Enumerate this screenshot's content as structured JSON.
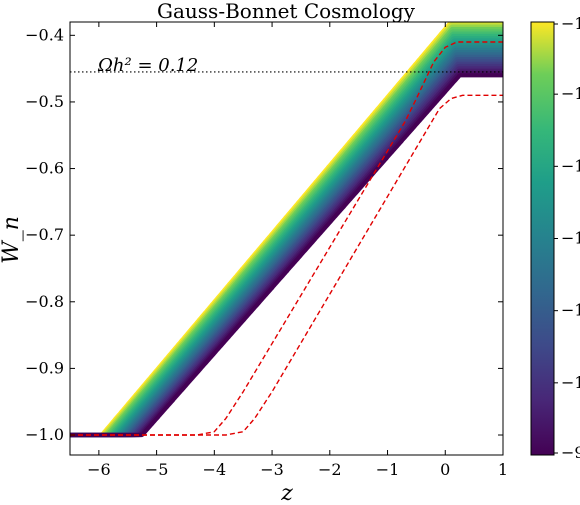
{
  "chart_data": {
    "type": "line",
    "title": "Gauss-Bonnet Cosmology",
    "xlabel": "z",
    "ylabel": "W_n",
    "xlim": [
      -6.5,
      1.0
    ],
    "ylim": [
      -1.03,
      -0.38
    ],
    "xticks": [
      -6,
      -5,
      -4,
      -3,
      -2,
      -1,
      0,
      1
    ],
    "xtick_labels": [
      "−6",
      "−5",
      "−4",
      "−3",
      "−2",
      "−1",
      "0",
      "1"
    ],
    "yticks": [
      -1.0,
      -0.9,
      -0.8,
      -0.7,
      -0.6,
      -0.5,
      -0.4
    ],
    "ytick_labels": [
      "−1.0",
      "−0.9",
      "−0.8",
      "−0.7",
      "−0.6",
      "−0.5",
      "−0.4"
    ],
    "grid": false,
    "band": {
      "description": "family of W_n curves colored by a viridis colormap",
      "colormap": "viridis",
      "curve_count": 24,
      "lower_edge_curve": {
        "z_start": -5.25,
        "z_end": 0.25,
        "w_final": -0.46
      },
      "upper_edge_curve": {
        "z_start": -5.95,
        "z_end": 0.1,
        "w_final": -0.38
      }
    },
    "series": [
      {
        "style": "dashed",
        "color": "#e00000",
        "x": [
          -6.5,
          -4.3,
          -4.0,
          -3.8,
          -3.5,
          -0.7,
          -0.5,
          -0.2,
          0.0,
          0.2,
          1.0
        ],
        "y": [
          -1.0,
          -1.0,
          -0.995,
          -0.975,
          -0.935,
          -0.53,
          -0.495,
          -0.44,
          -0.418,
          -0.41,
          -0.41
        ]
      },
      {
        "style": "dashed",
        "color": "#e00000",
        "x": [
          -6.5,
          -3.8,
          -3.5,
          -3.3,
          -3.0,
          -0.1,
          0.1,
          0.3,
          0.5,
          0.7,
          1.0
        ],
        "y": [
          -1.0,
          -1.0,
          -0.995,
          -0.975,
          -0.935,
          -0.51,
          -0.495,
          -0.49,
          -0.49,
          -0.49,
          -0.49
        ]
      }
    ],
    "hline": {
      "y": -0.455,
      "style": "dotted",
      "color": "#000000",
      "label": "Ωh² = 0.12"
    },
    "colorbar": {
      "colormap": "viridis",
      "tick_labels": [
        "−9",
        "−1",
        "−1",
        "−1",
        "−1",
        "−1",
        "−1"
      ]
    }
  }
}
